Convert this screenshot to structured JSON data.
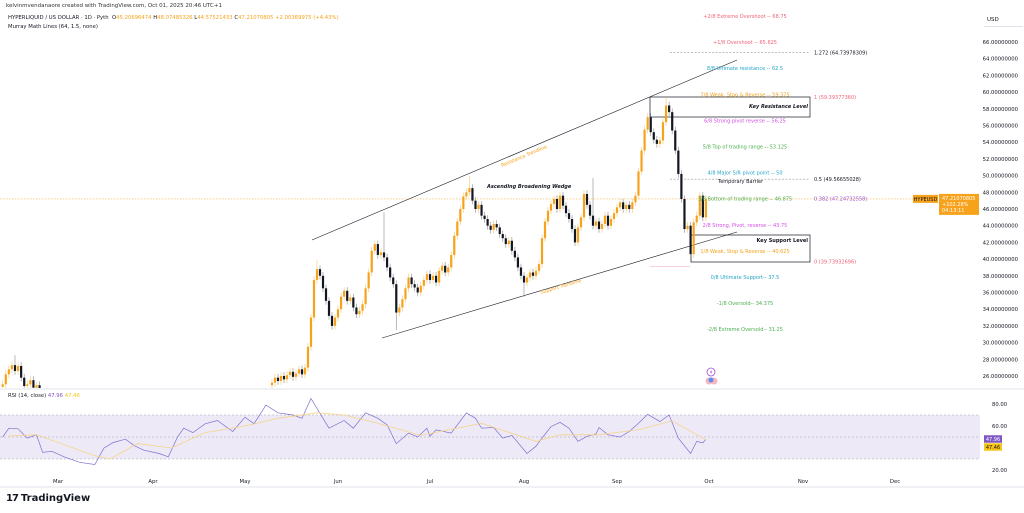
{
  "header": {
    "credit": "kelvinmvendanaore created with TradingView.com, Oct 01, 2025 20:46 UTC+1",
    "symbol_title": "HYPERLIQUID / US DOLLAR · 1D · Pyth",
    "ohlc": {
      "o_label": "O",
      "o": "45.20696474",
      "h_label": "H",
      "h": "48.07485326",
      "l_label": "L",
      "l": "44.57521433",
      "c_label": "C",
      "c": "47.21070805",
      "change": "+2.00369975 (+4.43%)"
    },
    "indicator": "Murray Math Lines (64, 1.5, none)"
  },
  "currency_label": "USD",
  "price_tag": {
    "symbol": "HYPEUSD",
    "price": "47.21070805",
    "change_pct": "+102.28%",
    "countdown": "04:13:11",
    "color": "#f7a21b"
  },
  "rsi_legend": {
    "label": "RSI (14, close)",
    "rsi": "47.96",
    "ma": "47.46"
  },
  "rsi_tags": {
    "rsi": "47.96",
    "ma": "47.46",
    "rsi_color": "#7e57c2",
    "ma_color": "#f5c518"
  },
  "footer": {
    "brand": "TradingView"
  },
  "colors": {
    "up": "#f7a21b",
    "down": "#131722",
    "resistance_text": "#f7a21b",
    "rsi_line": "#7e6fd0",
    "rsi_ma": "#f5d58a",
    "rsi_band": "#ede9f7"
  },
  "chart_data": [
    {
      "type": "candlestick",
      "symbol": "HYPEUSD",
      "interval": "1D",
      "y_axis": {
        "min": 24.6,
        "max": 68.75,
        "ticks": [
          "66.00000000",
          "64.00000000",
          "62.00000000",
          "60.00000000",
          "58.00000000",
          "56.00000000",
          "54.00000000",
          "52.00000000",
          "50.00000000",
          "48.00000000",
          "46.00000000",
          "44.00000000",
          "42.00000000",
          "40.00000000",
          "38.00000000",
          "36.00000000",
          "34.00000000",
          "32.00000000",
          "30.00000000",
          "28.00000000",
          "26.00000000"
        ],
        "tick_values": [
          66,
          64,
          62,
          60,
          58,
          56,
          54,
          52,
          50,
          48,
          46,
          44,
          42,
          40,
          38,
          36,
          34,
          32,
          30,
          28,
          26
        ]
      },
      "x_axis": {
        "ticks": [
          "Mar",
          "Apr",
          "May",
          "Jun",
          "Jul",
          "Aug",
          "Sep",
          "Oct",
          "Nov",
          "Dec"
        ]
      },
      "segments": [
        {
          "start": "2025-02-11",
          "closes": [
            25.0,
            26.2,
            26.8,
            27.3,
            26.6,
            27.2,
            25.8,
            24.8,
            25.0,
            25.5,
            24.6,
            24.9,
            24.5
          ]
        },
        {
          "start": "2025-05-10",
          "closes": [
            25.2,
            25.8,
            25.4,
            26.0,
            25.6,
            26.1,
            26.5,
            25.9,
            26.3,
            26.8,
            26.2,
            27.0,
            29.5,
            33.0,
            37.5,
            38.8,
            38.0,
            36.5,
            35.0,
            33.2,
            32.0,
            33.0,
            34.0,
            35.5,
            36.2,
            35.0,
            35.4,
            34.2,
            33.4,
            33.8,
            34.6,
            36.5,
            38.4,
            41.0,
            41.8,
            40.5,
            40.8,
            40.2,
            39.0,
            37.8,
            37.0,
            33.6,
            34.2,
            35.2,
            36.5,
            37.8,
            37.0,
            36.6,
            36.0,
            36.8,
            37.5,
            38.2,
            37.5,
            38.0,
            37.2,
            38.6,
            39.2,
            38.4,
            39.0,
            40.5,
            42.8,
            44.5,
            46.0,
            47.5,
            48.0,
            48.5,
            47.0,
            46.0,
            46.5,
            45.2,
            44.8,
            44.0,
            43.5,
            44.2,
            43.8,
            43.0,
            42.5,
            41.8,
            42.2,
            41.0,
            40.2,
            39.0,
            38.0,
            37.2,
            37.8,
            38.4,
            38.0,
            38.6,
            39.4,
            42.5,
            44.5,
            45.8,
            46.6,
            47.2,
            46.0,
            47.6,
            46.4,
            45.5,
            44.8,
            43.6,
            42.0,
            43.8,
            45.0,
            47.8,
            46.5,
            45.2,
            44.0,
            44.5,
            43.6,
            44.2,
            45.2,
            44.0,
            44.8,
            45.5,
            46.2,
            46.8,
            46.0,
            46.5,
            46.0,
            46.8,
            47.6,
            50.5,
            53.0,
            55.5,
            57.0,
            55.2,
            54.3,
            53.8,
            54.2,
            56.4,
            58.4,
            57.6,
            55.4,
            53.0,
            50.2,
            47.2,
            43.6,
            44.0,
            40.6,
            44.4,
            45.2,
            47.6,
            45.0,
            47.21
          ]
        }
      ],
      "wick_extremes": [
        {
          "date": "2025-02-15",
          "high": 28.5
        },
        {
          "date": "2025-05-25",
          "high": 39.9
        },
        {
          "date": "2025-06-16",
          "high": 45.6
        },
        {
          "date": "2025-06-20",
          "low": 31.5
        },
        {
          "date": "2025-07-14",
          "high": 49.9
        },
        {
          "date": "2025-08-01",
          "low": 35.5
        },
        {
          "date": "2025-08-24",
          "high": 49.7
        },
        {
          "date": "2025-09-17",
          "high": 59.39
        },
        {
          "date": "2025-09-25",
          "low": 39.74
        }
      ],
      "current_price": 47.21070805,
      "murray_levels": [
        {
          "label": "+2/8 Extreme Overshoot --  68.75",
          "value": 68.75,
          "color": "#f0647a"
        },
        {
          "label": "+1/8 Overshoot --  65.625",
          "value": 65.625,
          "color": "#f0647a"
        },
        {
          "label": "8/8 Ultimate resistance --  62.5",
          "value": 62.5,
          "color": "#26a6c9"
        },
        {
          "label": "7/8 Weak, Stop & Reverse --  59.375",
          "value": 59.375,
          "color": "#f7a21b"
        },
        {
          "label": "6/8 Strong pivot reverse --  56.25",
          "value": 56.25,
          "color": "#d54ee6"
        },
        {
          "label": "5/8 Top of trading range --  53.125",
          "value": 53.125,
          "color": "#4caf50"
        },
        {
          "label": "4/8 Major S/R pivot point --  50",
          "value": 50,
          "color": "#26a6c9"
        },
        {
          "label": "3/8 Bottom of trading range --  46.875",
          "value": 46.875,
          "color": "#4caf50"
        },
        {
          "label": "2/8 Strong, Pivot, reverse --  43.75",
          "value": 43.75,
          "color": "#d54ee6"
        },
        {
          "label": "1/8 Weak, Stop & Reverse --  40.625",
          "value": 40.625,
          "color": "#f7a21b"
        },
        {
          "label": "0/8 Ultimate Support--  37.5",
          "value": 37.5,
          "color": "#26a6c9"
        },
        {
          "label": "-1/8 Oversold--  34.375",
          "value": 34.375,
          "color": "#4caf50"
        },
        {
          "label": "-2/8 Extreme Oversold--  31.25",
          "value": 31.25,
          "color": "#4caf50"
        }
      ],
      "fib_levels": [
        {
          "label": "1.272 (64.73978309)",
          "value": 64.73978309,
          "color": "#131722"
        },
        {
          "label": "1 (59.39377360)",
          "value": 59.3937736,
          "color": "#f0647a"
        },
        {
          "label": "0.5 (49.56655028)",
          "value": 49.56655028,
          "color": "#131722"
        },
        {
          "label": "0.382 (47.24732558)",
          "value": 47.24732558,
          "color": "#9c4fd6"
        },
        {
          "label": "0 (39.73932696)",
          "value": 39.73932696,
          "color": "#f0647a"
        }
      ],
      "annotations": {
        "wedge": "Ascending Broadening Wedge",
        "resistance_trendline": "Resistance Trendline",
        "support_trendline": "Support Trendline",
        "key_resistance": "Key Resistance Level",
        "key_support": "Key Support Level",
        "temporary_barrier": "Temporary Barrier"
      }
    },
    {
      "type": "line",
      "title": "RSI (14, close)",
      "y_axis": {
        "ticks": [
          "80.00",
          "60.00",
          "20.00"
        ],
        "tick_values": [
          80,
          60,
          20
        ],
        "bands": [
          70,
          50,
          30
        ]
      },
      "series": [
        {
          "name": "RSI",
          "points": [
            [
              "2025-02-11",
              50
            ],
            [
              "2025-02-13",
              58
            ],
            [
              "2025-02-16",
              57.5
            ],
            [
              "2025-02-19",
              49
            ],
            [
              "2025-02-22",
              52
            ],
            [
              "2025-02-24",
              36
            ],
            [
              "2025-02-27",
              37
            ],
            [
              "2025-03-03",
              32
            ],
            [
              "2025-03-08",
              27
            ],
            [
              "2025-03-13",
              25
            ],
            [
              "2025-03-16",
              40
            ],
            [
              "2025-03-19",
              45
            ],
            [
              "2025-03-23",
              48
            ],
            [
              "2025-03-26",
              42
            ],
            [
              "2025-03-29",
              38
            ],
            [
              "2025-04-03",
              35
            ],
            [
              "2025-04-06",
              32
            ],
            [
              "2025-04-09",
              50
            ],
            [
              "2025-04-11",
              58
            ],
            [
              "2025-04-14",
              54
            ],
            [
              "2025-04-18",
              62
            ],
            [
              "2025-04-22",
              65
            ],
            [
              "2025-04-27",
              55
            ],
            [
              "2025-05-01",
              68
            ],
            [
              "2025-05-04",
              62
            ],
            [
              "2025-05-08",
              79
            ],
            [
              "2025-05-12",
              72
            ],
            [
              "2025-05-17",
              70
            ],
            [
              "2025-05-20",
              67
            ],
            [
              "2025-05-23",
              85
            ],
            [
              "2025-05-27",
              67
            ],
            [
              "2025-05-29",
              58
            ],
            [
              "2025-06-03",
              65
            ],
            [
              "2025-06-06",
              58
            ],
            [
              "2025-06-10",
              72
            ],
            [
              "2025-06-14",
              67
            ],
            [
              "2025-06-17",
              61
            ],
            [
              "2025-06-20",
              44
            ],
            [
              "2025-06-24",
              53.5
            ],
            [
              "2025-06-27",
              50
            ],
            [
              "2025-06-30",
              58
            ],
            [
              "2025-07-01",
              50.6
            ],
            [
              "2025-07-03",
              56.5
            ],
            [
              "2025-07-08",
              53.5
            ],
            [
              "2025-07-13",
              72
            ],
            [
              "2025-07-16",
              67
            ],
            [
              "2025-07-18",
              58
            ],
            [
              "2025-07-22",
              58.6
            ],
            [
              "2025-07-25",
              49
            ],
            [
              "2025-07-28",
              51.5
            ],
            [
              "2025-08-02",
              35
            ],
            [
              "2025-08-05",
              41.6
            ],
            [
              "2025-08-07",
              49
            ],
            [
              "2025-08-10",
              59.5
            ],
            [
              "2025-08-13",
              63.4
            ],
            [
              "2025-08-16",
              58
            ],
            [
              "2025-08-19",
              46
            ],
            [
              "2025-08-22",
              50.6
            ],
            [
              "2025-08-25",
              52.7
            ],
            [
              "2025-08-26",
              58.6
            ],
            [
              "2025-08-29",
              52
            ],
            [
              "2025-09-02",
              50
            ],
            [
              "2025-09-05",
              55
            ],
            [
              "2025-09-08",
              62.5
            ],
            [
              "2025-09-11",
              70.6
            ],
            [
              "2025-09-15",
              64
            ],
            [
              "2025-09-18",
              70
            ],
            [
              "2025-09-21",
              49
            ],
            [
              "2025-09-25",
              35
            ],
            [
              "2025-09-27",
              46
            ],
            [
              "2025-09-29",
              44.6
            ],
            [
              "2025-09-30",
              47.96
            ]
          ]
        },
        {
          "name": "RSI-based MA",
          "points": [
            [
              "2025-02-13",
              51
            ],
            [
              "2025-02-22",
              52
            ],
            [
              "2025-03-13",
              33
            ],
            [
              "2025-03-18",
              30
            ],
            [
              "2025-03-27",
              44
            ],
            [
              "2025-04-07",
              40
            ],
            [
              "2025-04-18",
              54
            ],
            [
              "2025-05-01",
              60
            ],
            [
              "2025-05-12",
              67
            ],
            [
              "2025-05-25",
              72
            ],
            [
              "2025-06-03",
              70
            ],
            [
              "2025-06-12",
              64
            ],
            [
              "2025-06-28",
              51.5
            ],
            [
              "2025-07-18",
              62.5
            ],
            [
              "2025-08-05",
              46
            ],
            [
              "2025-08-13",
              52
            ],
            [
              "2025-08-26",
              52
            ],
            [
              "2025-09-08",
              56.6
            ],
            [
              "2025-09-19",
              64.6
            ],
            [
              "2025-09-30",
              47.46
            ]
          ]
        }
      ]
    }
  ]
}
